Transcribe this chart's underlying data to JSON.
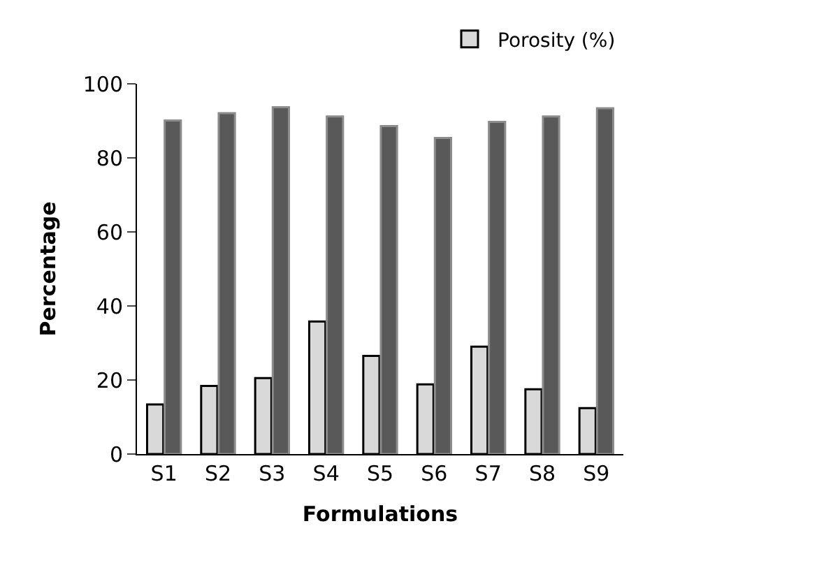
{
  "chart_data": {
    "type": "bar",
    "xlabel": "Formulations",
    "ylabel": "Percentage",
    "categories": [
      "S1",
      "S2",
      "S3",
      "S4",
      "S5",
      "S6",
      "S7",
      "S8",
      "S9"
    ],
    "series": [
      {
        "name": "Porosity (%)",
        "color": "#d9d9d9",
        "values": [
          13.4,
          18.4,
          20.5,
          35.8,
          26.5,
          18.8,
          29,
          17.5,
          12.4
        ]
      },
      {
        "color": "#595959",
        "values": [
          90.1,
          92.1,
          93.7,
          91.2,
          88.6,
          85.4,
          89.7,
          91.2,
          93.4
        ]
      }
    ],
    "ylim": [
      0,
      100
    ],
    "yticks": [
      0,
      20,
      40,
      60,
      80,
      100
    ],
    "legend": "top right"
  }
}
